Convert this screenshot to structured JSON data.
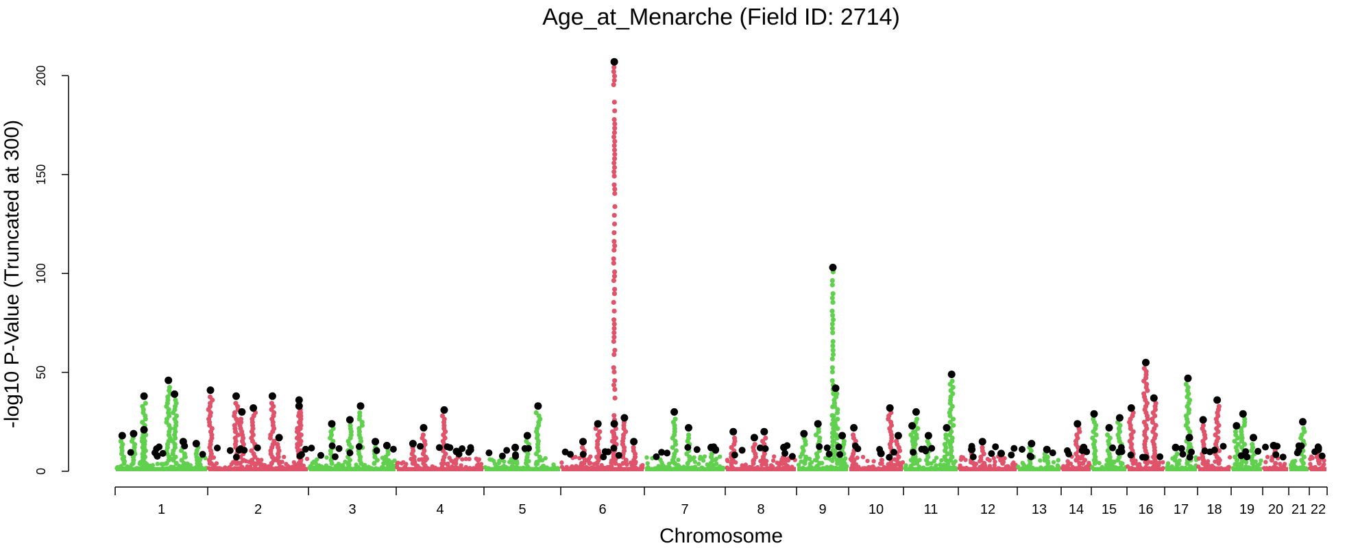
{
  "chart_data": {
    "type": "scatter",
    "title": "Age_at_Menarche (Field ID: 2714)",
    "xlabel": "Chromosome",
    "ylabel": "-log10 P-Value (Truncated at 300)",
    "ylim": [
      0,
      210
    ],
    "yticks": [
      "0",
      "50",
      "100",
      "150",
      "200"
    ],
    "grid": false,
    "legend": "none",
    "colors": {
      "odd_chromosome": "#61D04F",
      "even_chromosome": "#DF536B",
      "lead_hit": "#000000"
    },
    "chromosomes": [
      "1",
      "2",
      "3",
      "4",
      "5",
      "6",
      "7",
      "8",
      "9",
      "10",
      "11",
      "12",
      "13",
      "14",
      "15",
      "16",
      "17",
      "18",
      "19",
      "20",
      "21",
      "22"
    ],
    "peaks": [
      {
        "chr": "1",
        "pos": 0.05,
        "y": 18
      },
      {
        "chr": "1",
        "pos": 0.18,
        "y": 19
      },
      {
        "chr": "1",
        "pos": 0.3,
        "y": 38
      },
      {
        "chr": "1",
        "pos": 0.3,
        "y": 21
      },
      {
        "chr": "1",
        "pos": 0.58,
        "y": 46
      },
      {
        "chr": "1",
        "pos": 0.65,
        "y": 39
      },
      {
        "chr": "1",
        "pos": 0.75,
        "y": 15
      },
      {
        "chr": "1",
        "pos": 0.9,
        "y": 14
      },
      {
        "chr": "2",
        "pos": 0.0,
        "y": 41
      },
      {
        "chr": "2",
        "pos": 0.27,
        "y": 38
      },
      {
        "chr": "2",
        "pos": 0.33,
        "y": 30
      },
      {
        "chr": "2",
        "pos": 0.45,
        "y": 32
      },
      {
        "chr": "2",
        "pos": 0.65,
        "y": 38
      },
      {
        "chr": "2",
        "pos": 0.72,
        "y": 17
      },
      {
        "chr": "2",
        "pos": 0.93,
        "y": 36
      },
      {
        "chr": "2",
        "pos": 0.93,
        "y": 33
      },
      {
        "chr": "3",
        "pos": 0.25,
        "y": 24
      },
      {
        "chr": "3",
        "pos": 0.47,
        "y": 26
      },
      {
        "chr": "3",
        "pos": 0.6,
        "y": 33
      },
      {
        "chr": "3",
        "pos": 0.78,
        "y": 15
      },
      {
        "chr": "3",
        "pos": 0.92,
        "y": 13
      },
      {
        "chr": "4",
        "pos": 0.17,
        "y": 14
      },
      {
        "chr": "4",
        "pos": 0.3,
        "y": 22
      },
      {
        "chr": "4",
        "pos": 0.55,
        "y": 31
      },
      {
        "chr": "4",
        "pos": 0.7,
        "y": 10
      },
      {
        "chr": "5",
        "pos": 0.4,
        "y": 12
      },
      {
        "chr": "5",
        "pos": 0.57,
        "y": 18
      },
      {
        "chr": "5",
        "pos": 0.72,
        "y": 33
      },
      {
        "chr": "6",
        "pos": 0.25,
        "y": 15
      },
      {
        "chr": "6",
        "pos": 0.44,
        "y": 24
      },
      {
        "chr": "6",
        "pos": 0.65,
        "y": 207
      },
      {
        "chr": "6",
        "pos": 0.65,
        "y": 24
      },
      {
        "chr": "6",
        "pos": 0.78,
        "y": 27
      },
      {
        "chr": "6",
        "pos": 0.9,
        "y": 15
      },
      {
        "chr": "7",
        "pos": 0.36,
        "y": 30
      },
      {
        "chr": "7",
        "pos": 0.55,
        "y": 22
      },
      {
        "chr": "7",
        "pos": 0.85,
        "y": 12
      },
      {
        "chr": "8",
        "pos": 0.08,
        "y": 20
      },
      {
        "chr": "8",
        "pos": 0.4,
        "y": 17
      },
      {
        "chr": "8",
        "pos": 0.55,
        "y": 20
      },
      {
        "chr": "8",
        "pos": 0.85,
        "y": 12
      },
      {
        "chr": "9",
        "pos": 0.1,
        "y": 19
      },
      {
        "chr": "9",
        "pos": 0.4,
        "y": 24
      },
      {
        "chr": "9",
        "pos": 0.72,
        "y": 103
      },
      {
        "chr": "9",
        "pos": 0.78,
        "y": 42
      },
      {
        "chr": "9",
        "pos": 0.92,
        "y": 18
      },
      {
        "chr": "10",
        "pos": 0.05,
        "y": 22
      },
      {
        "chr": "10",
        "pos": 0.6,
        "y": 9
      },
      {
        "chr": "10",
        "pos": 0.78,
        "y": 32
      },
      {
        "chr": "10",
        "pos": 0.95,
        "y": 18
      },
      {
        "chr": "11",
        "pos": 0.12,
        "y": 23
      },
      {
        "chr": "11",
        "pos": 0.2,
        "y": 30
      },
      {
        "chr": "11",
        "pos": 0.45,
        "y": 18
      },
      {
        "chr": "11",
        "pos": 0.82,
        "y": 22
      },
      {
        "chr": "11",
        "pos": 0.92,
        "y": 49
      },
      {
        "chr": "12",
        "pos": 0.2,
        "y": 11
      },
      {
        "chr": "12",
        "pos": 0.4,
        "y": 15
      },
      {
        "chr": "12",
        "pos": 0.75,
        "y": 9
      },
      {
        "chr": "13",
        "pos": 0.3,
        "y": 14
      },
      {
        "chr": "13",
        "pos": 0.7,
        "y": 11
      },
      {
        "chr": "14",
        "pos": 0.55,
        "y": 24
      },
      {
        "chr": "14",
        "pos": 0.8,
        "y": 12
      },
      {
        "chr": "15",
        "pos": 0.0,
        "y": 29
      },
      {
        "chr": "15",
        "pos": 0.5,
        "y": 22
      },
      {
        "chr": "15",
        "pos": 0.85,
        "y": 27
      },
      {
        "chr": "16",
        "pos": 0.05,
        "y": 32
      },
      {
        "chr": "16",
        "pos": 0.5,
        "y": 55
      },
      {
        "chr": "16",
        "pos": 0.75,
        "y": 37
      },
      {
        "chr": "17",
        "pos": 0.3,
        "y": 12
      },
      {
        "chr": "17",
        "pos": 0.75,
        "y": 47
      },
      {
        "chr": "17",
        "pos": 0.8,
        "y": 17
      },
      {
        "chr": "18",
        "pos": 0.1,
        "y": 26
      },
      {
        "chr": "18",
        "pos": 0.6,
        "y": 36
      },
      {
        "chr": "19",
        "pos": 0.1,
        "y": 23
      },
      {
        "chr": "19",
        "pos": 0.35,
        "y": 29
      },
      {
        "chr": "19",
        "pos": 0.75,
        "y": 17
      },
      {
        "chr": "20",
        "pos": 0.4,
        "y": 13
      },
      {
        "chr": "21",
        "pos": 0.75,
        "y": 25
      },
      {
        "chr": "22",
        "pos": 0.5,
        "y": 11
      }
    ]
  }
}
